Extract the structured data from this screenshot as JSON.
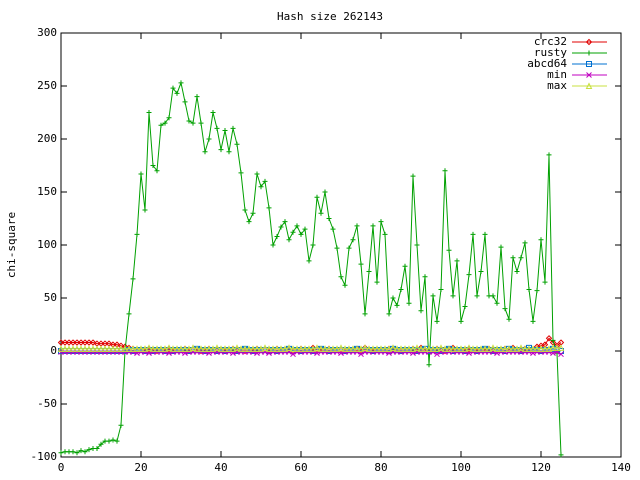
{
  "chart_data": {
    "type": "line",
    "title": "Hash size 262143",
    "y_label": "chi-square",
    "xlim": [
      0,
      140
    ],
    "xticks": [
      0,
      20,
      40,
      60,
      80,
      100,
      120,
      140
    ],
    "ylim": [
      -100,
      300
    ],
    "yticks": [
      -100,
      -50,
      0,
      50,
      100,
      150,
      200,
      250,
      300
    ],
    "legend": "upper right",
    "x": [
      0,
      1,
      2,
      3,
      4,
      5,
      6,
      7,
      8,
      9,
      10,
      11,
      12,
      13,
      14,
      15,
      16,
      17,
      18,
      19,
      20,
      21,
      22,
      23,
      24,
      25,
      26,
      27,
      28,
      29,
      30,
      31,
      32,
      33,
      34,
      35,
      36,
      37,
      38,
      39,
      40,
      41,
      42,
      43,
      44,
      45,
      46,
      47,
      48,
      49,
      50,
      51,
      52,
      53,
      54,
      55,
      56,
      57,
      58,
      59,
      60,
      61,
      62,
      63,
      64,
      65,
      66,
      67,
      68,
      69,
      70,
      71,
      72,
      73,
      74,
      75,
      76,
      77,
      78,
      79,
      80,
      81,
      82,
      83,
      84,
      85,
      86,
      87,
      88,
      89,
      90,
      91,
      92,
      93,
      94,
      95,
      96,
      97,
      98,
      99,
      100,
      101,
      102,
      103,
      104,
      105,
      106,
      107,
      108,
      109,
      110,
      111,
      112,
      113,
      114,
      115,
      116,
      117,
      118,
      119,
      120,
      121,
      122,
      123,
      124,
      125
    ],
    "series": [
      {
        "name": "crc32",
        "color": "#e00000",
        "marker": "diamond",
        "values": [
          8,
          8,
          8,
          8,
          8,
          8,
          8,
          8,
          8,
          7,
          7,
          7,
          7,
          6,
          6,
          5,
          4,
          3,
          2,
          1,
          1,
          1,
          2,
          1,
          0,
          1,
          1,
          2,
          1,
          1,
          1,
          2,
          1,
          1,
          1,
          0,
          1,
          2,
          1,
          1,
          1,
          1,
          1,
          2,
          1,
          1,
          0,
          1,
          1,
          2,
          1,
          1,
          1,
          1,
          2,
          1,
          1,
          1,
          0,
          1,
          2,
          1,
          1,
          3,
          1,
          1,
          1,
          2,
          1,
          1,
          1,
          0,
          1,
          1,
          2,
          1,
          3,
          1,
          1,
          1,
          1,
          1,
          2,
          1,
          1,
          0,
          1,
          1,
          2,
          1,
          3,
          1,
          1,
          1,
          2,
          1,
          0,
          1,
          3,
          1,
          1,
          1,
          2,
          1,
          1,
          1,
          1,
          2,
          1,
          1,
          1,
          2,
          1,
          3,
          1,
          1,
          2,
          1,
          1,
          4,
          5,
          6,
          12,
          8,
          5,
          8
        ]
      },
      {
        "name": "rusty",
        "color": "#00a000",
        "marker": "plus",
        "values": [
          -96,
          -95,
          -95,
          -95,
          -96,
          -94,
          -95,
          -93,
          -92,
          -92,
          -88,
          -85,
          -85,
          -84,
          -85,
          -70,
          0,
          35,
          68,
          110,
          167,
          133,
          225,
          175,
          170,
          213,
          215,
          220,
          248,
          243,
          253,
          235,
          217,
          215,
          240,
          215,
          188,
          200,
          225,
          210,
          190,
          208,
          188,
          210,
          195,
          168,
          133,
          122,
          130,
          167,
          155,
          160,
          135,
          100,
          108,
          117,
          122,
          105,
          112,
          118,
          110,
          115,
          85,
          100,
          145,
          130,
          150,
          125,
          115,
          97,
          70,
          62,
          97,
          105,
          118,
          82,
          35,
          75,
          118,
          65,
          122,
          110,
          35,
          50,
          43,
          58,
          80,
          45,
          165,
          100,
          38,
          70,
          -13,
          52,
          28,
          58,
          170,
          95,
          52,
          85,
          28,
          42,
          72,
          110,
          52,
          75,
          110,
          52,
          52,
          45,
          98,
          40,
          30,
          88,
          75,
          88,
          102,
          58,
          28,
          57,
          105,
          65,
          185,
          10,
          -2,
          -98
        ]
      },
      {
        "name": "abcd64",
        "color": "#0070d0",
        "marker": "square",
        "values": [
          0,
          0,
          0,
          0,
          0,
          0,
          0,
          0,
          0,
          0,
          0,
          0,
          0,
          0,
          0,
          0,
          0,
          1,
          0,
          1,
          1,
          0,
          1,
          0,
          1,
          1,
          0,
          1,
          0,
          1,
          1,
          1,
          0,
          1,
          2,
          1,
          0,
          1,
          1,
          0,
          1,
          0,
          1,
          1,
          0,
          1,
          2,
          1,
          0,
          1,
          1,
          1,
          0,
          1,
          0,
          1,
          1,
          2,
          0,
          1,
          0,
          1,
          1,
          0,
          1,
          2,
          1,
          0,
          1,
          1,
          1,
          0,
          1,
          1,
          2,
          0,
          1,
          1,
          0,
          1,
          1,
          1,
          0,
          2,
          1,
          0,
          1,
          1,
          1,
          0,
          1,
          2,
          0,
          1,
          1,
          0,
          1,
          2,
          0,
          1,
          1,
          0,
          1,
          1,
          0,
          1,
          2,
          1,
          0,
          1,
          1,
          0,
          2,
          1,
          1,
          0,
          1,
          3,
          1,
          1,
          0,
          1,
          1,
          2,
          1,
          0
        ]
      },
      {
        "name": "min",
        "color": "#c000c0",
        "marker": "cross",
        "values": [
          -1,
          -1,
          -1,
          -1,
          -1,
          -1,
          -1,
          -1,
          -1,
          -1,
          -1,
          -1,
          -1,
          -1,
          -1,
          -1,
          -1,
          -1,
          -1,
          -2,
          -1,
          -1,
          -2,
          -1,
          -1,
          -1,
          -1,
          -2,
          -1,
          -1,
          -1,
          -2,
          -1,
          -1,
          -1,
          -1,
          -1,
          -2,
          -1,
          -1,
          -1,
          -1,
          -1,
          -2,
          -1,
          -1,
          -1,
          -1,
          -1,
          -2,
          -1,
          -1,
          -2,
          -1,
          -1,
          -1,
          -1,
          -1,
          -3,
          -1,
          -1,
          -1,
          -1,
          -1,
          -2,
          -1,
          -1,
          -1,
          -1,
          -1,
          -2,
          -1,
          -1,
          -1,
          -1,
          -3,
          -1,
          -1,
          -1,
          -1,
          -1,
          -1,
          -2,
          -1,
          -1,
          -1,
          -1,
          -1,
          -2,
          -1,
          -1,
          -1,
          -1,
          -1,
          -3,
          -1,
          -1,
          -1,
          -1,
          -1,
          -1,
          -1,
          -2,
          -1,
          -1,
          -1,
          -1,
          -1,
          -1,
          -2,
          -1,
          -1,
          -1,
          -1,
          -1,
          -1,
          -1,
          -1,
          -2,
          -1,
          -1,
          -1,
          -1,
          -2,
          -1,
          -3
        ]
      },
      {
        "name": "max",
        "color": "#c8e040",
        "marker": "triangle",
        "values": [
          2,
          2,
          2,
          2,
          2,
          2,
          2,
          2,
          2,
          2,
          2,
          2,
          2,
          2,
          2,
          2,
          2,
          2,
          2,
          2,
          2,
          2,
          3,
          2,
          2,
          2,
          2,
          3,
          2,
          2,
          2,
          2,
          2,
          3,
          2,
          2,
          2,
          2,
          2,
          3,
          2,
          2,
          2,
          2,
          3,
          2,
          2,
          2,
          2,
          2,
          2,
          3,
          2,
          2,
          2,
          2,
          2,
          3,
          2,
          2,
          2,
          2,
          2,
          2,
          3,
          2,
          2,
          2,
          2,
          2,
          3,
          2,
          2,
          2,
          2,
          2,
          3,
          2,
          2,
          2,
          2,
          2,
          2,
          3,
          2,
          2,
          2,
          2,
          2,
          3,
          2,
          2,
          2,
          2,
          2,
          3,
          2,
          2,
          2,
          2,
          2,
          2,
          3,
          2,
          2,
          2,
          2,
          2,
          3,
          2,
          2,
          2,
          2,
          2,
          2,
          3,
          2,
          2,
          2,
          2,
          2,
          2,
          2,
          3,
          3,
          3
        ]
      }
    ]
  }
}
